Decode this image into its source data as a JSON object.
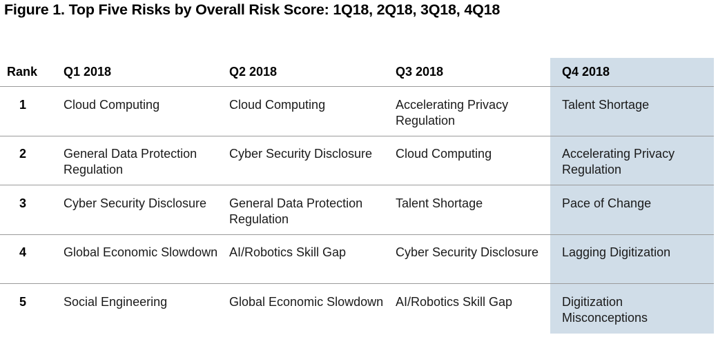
{
  "figure": {
    "title": "Figure 1. Top Five Risks by Overall Risk Score: 1Q18, 2Q18, 3Q18, 4Q18"
  },
  "colors": {
    "highlight_column": "#d0dde8",
    "divider": "#9a9a9a"
  },
  "table": {
    "headers": {
      "rank": "Rank",
      "q1": "Q1 2018",
      "q2": "Q2 2018",
      "q3": "Q3 2018",
      "q4": "Q4 2018"
    },
    "highlighted_column": "Q4 2018",
    "rows": [
      {
        "rank": "1",
        "q1": "Cloud Computing",
        "q2": "Cloud Computing",
        "q3": "Accelerating Privacy Regulation",
        "q4": "Talent Shortage"
      },
      {
        "rank": "2",
        "q1": "General Data Protection Regulation",
        "q2": "Cyber Security Disclosure",
        "q3": "Cloud Computing",
        "q4": "Accelerating Privacy Regulation"
      },
      {
        "rank": "3",
        "q1": "Cyber Security Disclosure",
        "q2": "General Data Protection Regulation",
        "q3": "Talent Shortage",
        "q4": "Pace of Change"
      },
      {
        "rank": "4",
        "q1": "Global Economic Slowdown",
        "q2": "AI/Robotics Skill Gap",
        "q3": "Cyber Security Disclosure",
        "q4": "Lagging Digitization"
      },
      {
        "rank": "5",
        "q1": "Social Engineering",
        "q2": "Global Economic Slowdown",
        "q3": "AI/Robotics Skill Gap",
        "q4": "Digitization Misconceptions"
      }
    ]
  }
}
